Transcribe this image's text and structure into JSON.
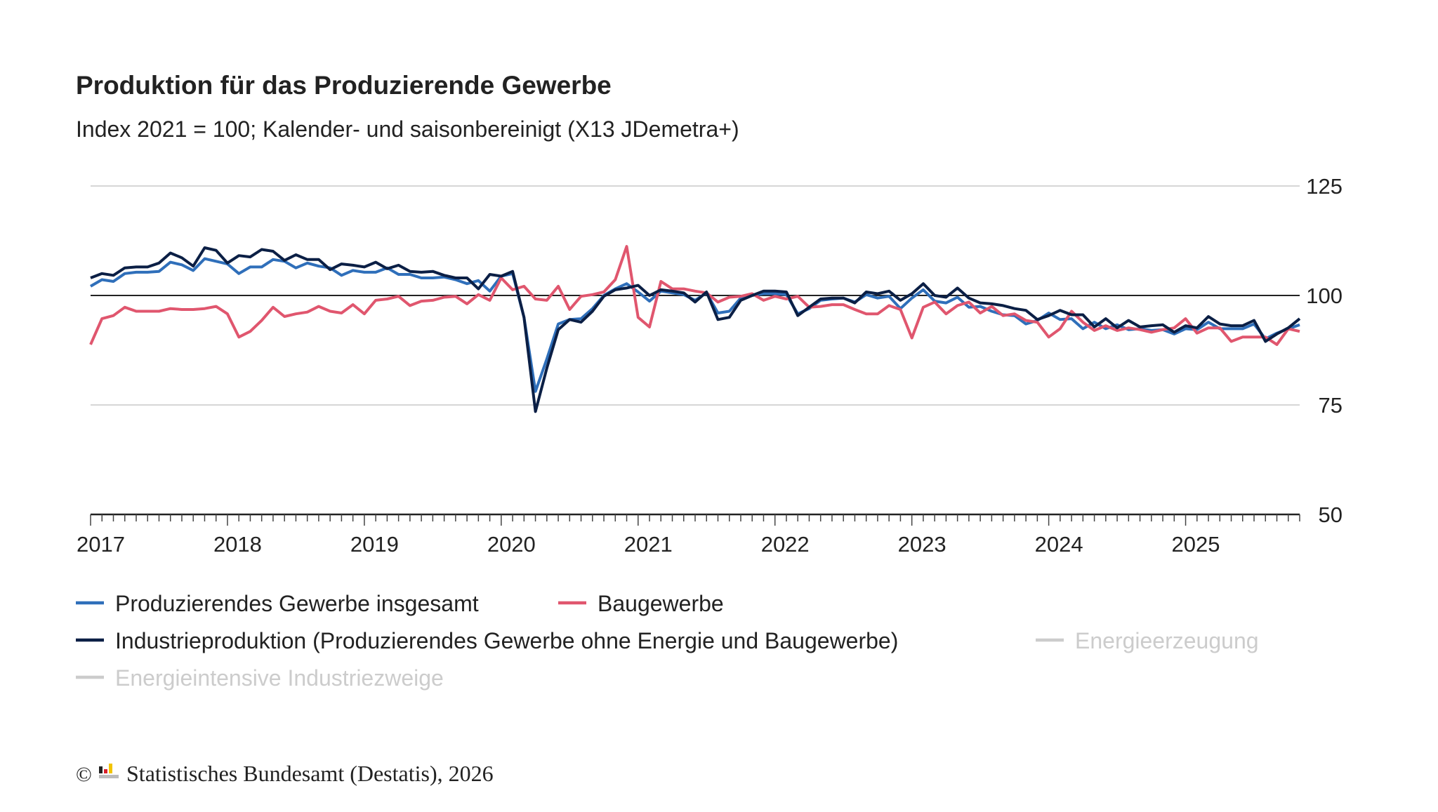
{
  "chart_data": {
    "type": "line",
    "title": "Produktion für das Produzierende Gewerbe",
    "subtitle": "Index 2021 = 100; Kalender- und saisonbereinigt (X13 JDemetra+)",
    "categories": [
      "2017",
      null,
      null,
      null,
      null,
      null,
      null,
      null,
      null,
      null,
      null,
      null,
      "2018",
      null,
      null,
      null,
      null,
      null,
      null,
      null,
      null,
      null,
      null,
      null,
      "2019",
      null,
      null,
      null,
      null,
      null,
      null,
      null,
      null,
      null,
      null,
      null,
      "2020",
      null,
      null,
      null,
      null,
      null,
      null,
      null,
      null,
      null,
      null,
      null,
      "2021",
      null,
      null,
      null,
      null,
      null,
      null,
      null,
      null,
      null,
      null,
      null,
      "2022",
      null,
      null,
      null,
      null,
      null,
      null,
      null,
      null,
      null,
      null,
      null,
      "2023",
      null,
      null,
      null,
      null,
      null,
      null,
      null,
      null,
      null,
      null,
      null,
      "2024",
      null,
      null,
      null,
      null,
      null,
      null,
      null,
      null,
      null,
      null,
      null,
      "2025",
      null,
      null,
      null,
      null,
      null,
      null,
      null,
      null,
      null,
      null
    ],
    "ylim": [
      50,
      125
    ],
    "yticks": [
      50,
      75,
      100,
      125
    ],
    "reference_line": 100,
    "grid": true,
    "series": [
      {
        "name": "Produzierendes Gewerbe insgesamt",
        "color": "#2f6fba",
        "visible": true,
        "values": [
          102.1,
          103.6,
          103.2,
          105,
          105.3,
          105.3,
          105.5,
          107.6,
          107,
          105.7,
          108.4,
          107.8,
          107.2,
          105,
          106.5,
          106.5,
          108.2,
          107.8,
          106.3,
          107.4,
          106.7,
          106.3,
          104.6,
          105.7,
          105.3,
          105.3,
          106.3,
          104.8,
          104.8,
          104,
          104,
          104.2,
          103.6,
          102.7,
          103.4,
          101,
          104.4,
          105,
          95,
          78.1,
          85.5,
          93.5,
          94.5,
          94.7,
          97,
          100,
          101.5,
          102.7,
          100.8,
          98.7,
          101,
          100.6,
          100.2,
          98.9,
          100.6,
          96,
          96.4,
          99.4,
          100,
          100.4,
          100.4,
          100.2,
          95.8,
          97,
          98.9,
          99.2,
          99.4,
          98.5,
          100.2,
          99.4,
          99.8,
          97,
          99.4,
          101.3,
          98.7,
          98.3,
          99.6,
          97.3,
          97.5,
          96.4,
          95.6,
          95.4,
          93.5,
          94.3,
          96,
          94.5,
          94.7,
          92.4,
          93.9,
          92.4,
          93.3,
          92.2,
          92.4,
          92,
          92.2,
          91.2,
          92.4,
          92.2,
          93.9,
          92.4,
          92.4,
          92.4,
          93.5,
          90.1,
          91.4,
          92.4,
          93.3
        ]
      },
      {
        "name": "Baugewerbe",
        "color": "#e0566e",
        "visible": true,
        "values": [
          88.8,
          94.7,
          95.4,
          97.3,
          96.4,
          96.4,
          96.4,
          97,
          96.8,
          96.8,
          97,
          97.5,
          95.8,
          90.5,
          91.8,
          94.3,
          97.3,
          95.2,
          95.8,
          96.2,
          97.5,
          96.4,
          96,
          97.9,
          95.8,
          98.9,
          99.2,
          99.8,
          97.7,
          98.7,
          98.9,
          99.6,
          99.8,
          98.1,
          100.2,
          98.9,
          104,
          101.3,
          102.1,
          99.2,
          98.9,
          102.1,
          96.8,
          99.8,
          100.2,
          100.8,
          103.6,
          111.2,
          95,
          92.8,
          103.2,
          101.5,
          101.5,
          101,
          100.6,
          98.5,
          99.6,
          99.8,
          100.4,
          98.9,
          99.8,
          99.2,
          99.8,
          97.3,
          97.5,
          97.9,
          97.9,
          96.8,
          95.8,
          95.8,
          97.7,
          96.8,
          90.3,
          97.3,
          98.5,
          95.8,
          97.7,
          98.5,
          96,
          97.5,
          95.4,
          95.8,
          94.3,
          93.9,
          90.5,
          92.4,
          96.4,
          93.9,
          92,
          93.1,
          92,
          92.6,
          92.2,
          91.6,
          92.2,
          92.6,
          94.7,
          91.4,
          92.6,
          92.6,
          89.5,
          90.5,
          90.5,
          90.5,
          88.8,
          92.4,
          91.8
        ]
      },
      {
        "name": "Industrieproduktion (Produzierendes Gewerbe ohne Energie und Baugewerbe)",
        "color": "#0b1f45",
        "visible": true,
        "values": [
          104,
          105,
          104.6,
          106.3,
          106.5,
          106.5,
          107.4,
          109.7,
          108.6,
          106.7,
          110.9,
          110.3,
          107.4,
          109.1,
          108.8,
          110.5,
          110.1,
          108,
          109.3,
          108.2,
          108.2,
          105.9,
          107.2,
          106.9,
          106.5,
          107.6,
          106.1,
          106.9,
          105.5,
          105.3,
          105.5,
          104.6,
          104,
          104,
          101.5,
          104.8,
          104.4,
          105.5,
          95,
          73.5,
          83.4,
          92.2,
          94.5,
          93.9,
          96.4,
          99.8,
          101.3,
          101.7,
          102.3,
          100,
          101.3,
          101,
          100.6,
          98.5,
          100.8,
          94.5,
          95,
          98.9,
          100,
          101,
          101,
          100.8,
          95.4,
          97.3,
          99.2,
          99.4,
          99.4,
          98.3,
          100.8,
          100.4,
          101,
          98.9,
          100.4,
          102.7,
          100,
          99.6,
          101.7,
          99.4,
          98.3,
          98.1,
          97.7,
          97,
          96.6,
          94.5,
          95.4,
          96.6,
          95.6,
          95.6,
          92.8,
          94.7,
          92.6,
          94.3,
          92.8,
          93.1,
          93.3,
          91.6,
          93.1,
          92.6,
          95.2,
          93.5,
          93.1,
          93.1,
          94.3,
          89.5,
          91.2,
          92.6,
          94.7
        ]
      },
      {
        "name": "Energieerzeugung",
        "color": "#cccccc",
        "visible": false,
        "values": [
          null,
          null,
          null,
          null,
          null,
          null,
          null,
          null,
          null,
          null,
          null,
          null,
          null,
          null,
          null,
          null,
          null,
          null,
          null,
          null,
          null,
          null,
          null,
          null,
          null,
          null,
          null,
          null,
          null,
          null,
          null,
          null,
          null,
          null,
          null,
          null,
          null,
          null,
          null,
          null,
          null,
          null,
          null,
          null,
          null,
          null,
          null,
          null,
          null,
          null,
          null,
          null,
          null,
          null,
          null,
          null,
          null,
          null,
          null,
          null,
          null,
          null,
          null,
          null,
          null,
          null,
          null,
          null,
          null,
          null,
          null,
          null,
          null,
          null,
          null,
          null,
          null,
          null,
          null,
          null,
          null,
          null,
          null,
          null,
          null,
          null,
          null,
          null,
          null,
          null,
          null,
          null,
          null,
          null,
          null,
          null,
          null,
          null,
          null,
          null,
          null,
          null,
          null,
          null,
          null,
          null,
          null
        ]
      },
      {
        "name": "Energieintensive Industriezweige",
        "color": "#cccccc",
        "visible": false,
        "values": [
          null,
          null,
          null,
          null,
          null,
          null,
          null,
          null,
          null,
          null,
          null,
          null,
          null,
          null,
          null,
          null,
          null,
          null,
          null,
          null,
          null,
          null,
          null,
          null,
          null,
          null,
          null,
          null,
          null,
          null,
          null,
          null,
          null,
          null,
          null,
          null,
          null,
          null,
          null,
          null,
          null,
          null,
          null,
          null,
          null,
          null,
          null,
          null,
          null,
          null,
          null,
          null,
          null,
          null,
          null,
          null,
          null,
          null,
          null,
          null,
          null,
          null,
          null,
          null,
          null,
          null,
          null,
          null,
          null,
          null,
          null,
          null,
          null,
          null,
          null,
          null,
          null,
          null,
          null,
          null,
          null,
          null,
          null,
          null,
          null,
          null,
          null,
          null,
          null,
          null,
          null,
          null,
          null,
          null,
          null,
          null,
          null,
          null,
          null,
          null,
          null,
          null,
          null,
          null,
          null,
          null,
          null
        ]
      }
    ],
    "copyright": "©",
    "source": "Statistisches Bundesamt (Destatis), 2026"
  }
}
